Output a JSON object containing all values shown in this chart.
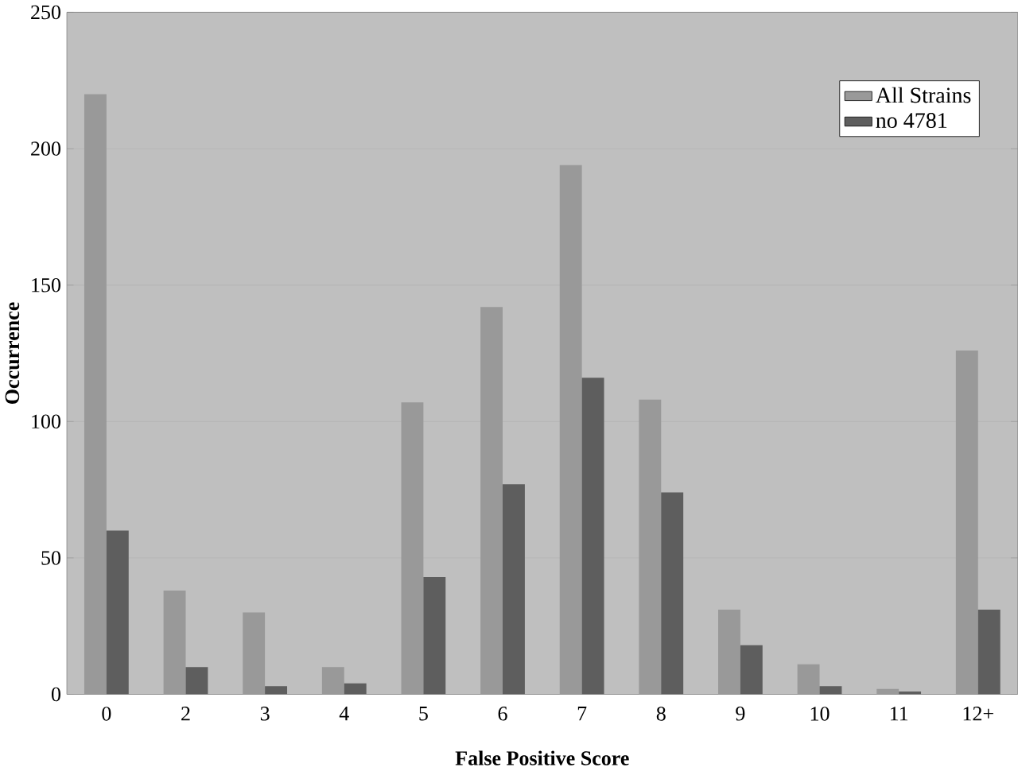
{
  "chart_data": {
    "type": "bar",
    "xlabel": "False Positive Score",
    "ylabel": "Occurrence",
    "categories": [
      "0",
      "2",
      "3",
      "4",
      "5",
      "6",
      "7",
      "8",
      "9",
      "10",
      "11",
      "12+"
    ],
    "series": [
      {
        "name": "All Strains",
        "color": "#999999",
        "values": [
          220,
          38,
          30,
          10,
          107,
          142,
          194,
          108,
          31,
          11,
          2,
          126
        ]
      },
      {
        "name": "no 4781",
        "color": "#5e5e5e",
        "values": [
          60,
          10,
          3,
          4,
          43,
          77,
          116,
          74,
          18,
          3,
          1,
          31
        ]
      }
    ],
    "ylim": [
      0,
      250
    ],
    "yticks": [
      0,
      50,
      100,
      150,
      200,
      250
    ],
    "grid": "y",
    "legend": "top right"
  }
}
